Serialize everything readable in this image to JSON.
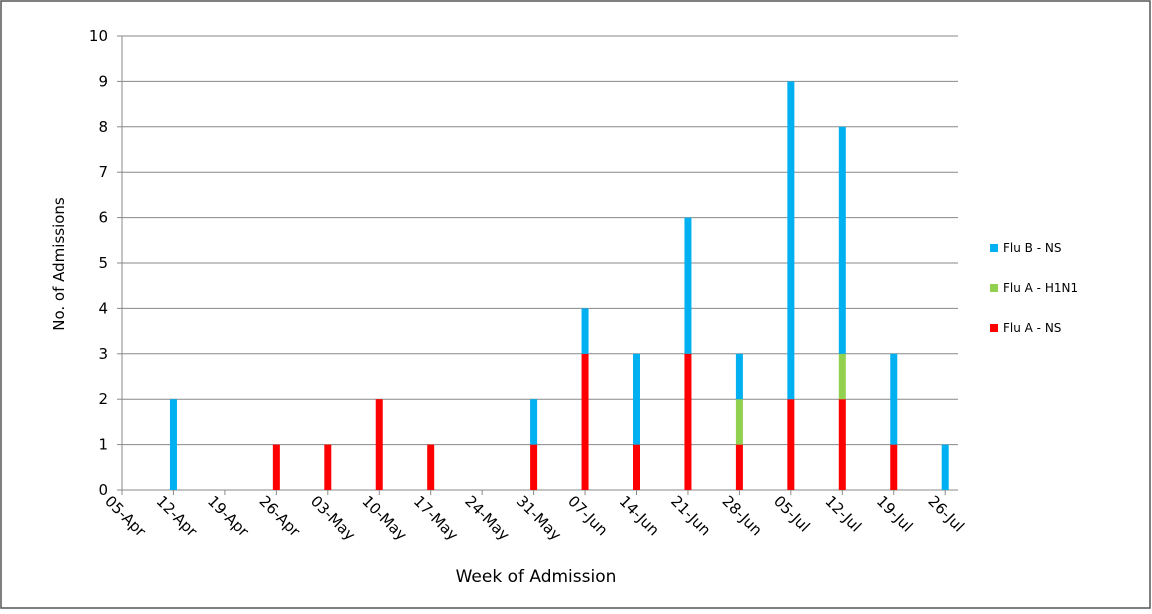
{
  "chart_data": {
    "type": "stacked-bar",
    "x_label": "Week of Admission",
    "y_label": "No. of Admissions",
    "categories": [
      "05-Apr",
      "12-Apr",
      "19-Apr",
      "26-Apr",
      "03-May",
      "10-May",
      "17-May",
      "24-May",
      "31-May",
      "07-Jun",
      "14-Jun",
      "21-Jun",
      "28-Jun",
      "05-Jul",
      "12-Jul",
      "19-Jul",
      "26-Jul"
    ],
    "series": [
      {
        "name": "Flu A - NS",
        "color": "#ff0000",
        "values": [
          0,
          0,
          0,
          1,
          1,
          2,
          1,
          0,
          1,
          3,
          1,
          3,
          1,
          2,
          2,
          1,
          0
        ]
      },
      {
        "name": "Flu A - H1N1",
        "color": "#92d050",
        "values": [
          0,
          0,
          0,
          0,
          0,
          0,
          0,
          0,
          0,
          0,
          0,
          0,
          1,
          0,
          1,
          0,
          0
        ]
      },
      {
        "name": "Flu B - NS",
        "color": "#00b0f0",
        "values": [
          0,
          2,
          0,
          0,
          0,
          0,
          0,
          0,
          1,
          1,
          2,
          3,
          1,
          7,
          5,
          2,
          1
        ]
      }
    ],
    "ylim": [
      0,
      10
    ],
    "yticks": [
      0,
      1,
      2,
      3,
      4,
      5,
      6,
      7,
      8,
      9,
      10
    ],
    "grid": true,
    "legend": "right"
  }
}
